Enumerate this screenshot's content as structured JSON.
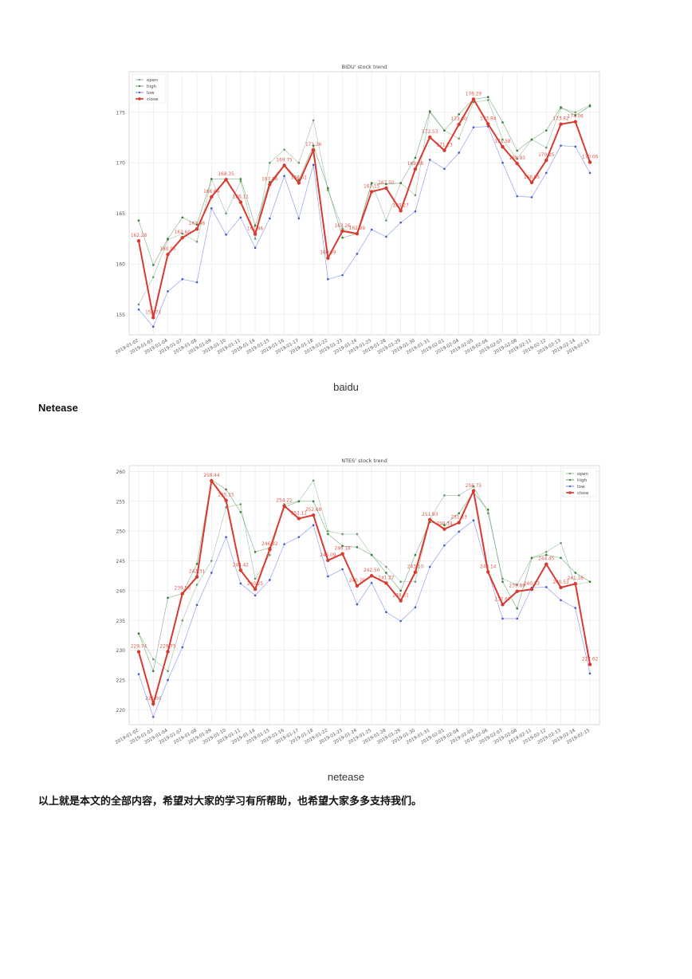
{
  "captions": {
    "baidu": "baidu",
    "netease": "netease"
  },
  "section_heading": "Netease",
  "closing_text": "以上就是本文的全部内容，希望对大家的学习有所帮助，也希望大家多多支持我们。",
  "colors": {
    "open": "#6a9a6a",
    "high": "#2e7d32",
    "low": "#3d56d9",
    "close": "#d93a2f",
    "grid": "#e6e6e6"
  },
  "chart_data": [
    {
      "type": "line",
      "title": "BIDU' stock trend",
      "legend_position": "top-left",
      "grid": true,
      "ylim": [
        153,
        179
      ],
      "yticks": [
        155,
        160,
        165,
        170,
        175
      ],
      "categories": [
        "2019-01-02",
        "2019-01-03",
        "2019-01-04",
        "2019-01-07",
        "2019-01-08",
        "2019-01-09",
        "2019-01-10",
        "2019-01-11",
        "2019-01-14",
        "2019-01-15",
        "2019-01-16",
        "2019-01-17",
        "2019-01-18",
        "2019-01-22",
        "2019-01-23",
        "2019-01-24",
        "2019-01-25",
        "2019-01-28",
        "2019-01-29",
        "2019-01-30",
        "2019-01-31",
        "2019-02-01",
        "2019-02-04",
        "2019-02-05",
        "2019-02-06",
        "2019-02-07",
        "2019-02-08",
        "2019-02-11",
        "2019-02-12",
        "2019-02-13",
        "2019-02-14",
        "2019-02-15"
      ],
      "series": [
        {
          "name": "open",
          "values": [
            156.0,
            158.7,
            162.4,
            163.0,
            162.2,
            168.4,
            165.0,
            168.2,
            162.5,
            170.0,
            171.3,
            170.0,
            174.2,
            167.3,
            163.5,
            163.0,
            168.0,
            164.3,
            168.0,
            166.8,
            175.0,
            173.2,
            172.4,
            176.0,
            176.2,
            172.3,
            170.4,
            172.3,
            171.5,
            175.4,
            175.0,
            175.7
          ]
        },
        {
          "name": "high",
          "values": [
            164.3,
            159.9,
            162.5,
            164.6,
            163.9,
            168.4,
            168.4,
            168.4,
            163.8,
            168.1,
            169.8,
            168.3,
            171.7,
            167.5,
            162.6,
            163.0,
            168.0,
            167.9,
            168.0,
            170.5,
            175.1,
            173.2,
            174.8,
            176.3,
            176.5,
            174.0,
            171.2,
            172.3,
            173.2,
            175.5,
            174.7,
            175.6
          ]
        },
        {
          "name": "low",
          "values": [
            155.5,
            153.8,
            157.3,
            158.5,
            158.2,
            165.5,
            162.9,
            164.6,
            161.6,
            164.5,
            168.7,
            164.5,
            169.8,
            158.5,
            158.9,
            161.0,
            163.4,
            162.7,
            164.1,
            165.2,
            170.3,
            169.4,
            171.0,
            173.5,
            173.6,
            170.0,
            166.7,
            166.6,
            169.0,
            171.7,
            171.6,
            169.0
          ]
        },
        {
          "name": "close",
          "values": [
            162.28,
            154.71,
            160.95,
            162.6,
            163.46,
            166.64,
            168.35,
            166.11,
            162.96,
            167.86,
            169.75,
            168.01,
            171.26,
            160.59,
            163.26,
            162.99,
            167.15,
            167.5,
            165.27,
            169.38,
            172.53,
            171.23,
            173.8,
            176.29,
            173.84,
            171.58,
            169.93,
            168.05,
            170.25,
            173.82,
            174.06,
            170.06
          ]
        }
      ],
      "close_labels": [
        "162.28",
        "154.71",
        "160.95",
        "162.60",
        "163.46",
        "166.64",
        "168.35",
        "166.11",
        "162.96",
        "167.86",
        "169.75",
        "168.01",
        "171.26",
        "160.59",
        "163.26",
        "162.99",
        "167.15",
        "167.50",
        "165.27",
        "169.38",
        "172.53",
        "171.23",
        "173.80",
        "176.29",
        "173.84",
        "171.58",
        "169.93",
        "168.05",
        "170.25",
        "173.82",
        "174.06",
        "170.06"
      ]
    },
    {
      "type": "line",
      "title": "NTES' stock trend",
      "legend_position": "top-right",
      "grid": true,
      "ylim": [
        217.5,
        261
      ],
      "yticks": [
        220,
        225,
        230,
        235,
        240,
        245,
        250,
        255,
        260
      ],
      "categories": [
        "2019-01-02",
        "2019-01-03",
        "2019-01-04",
        "2019-01-07",
        "2019-01-08",
        "2019-01-09",
        "2019-01-10",
        "2019-01-11",
        "2019-01-14",
        "2019-01-15",
        "2019-01-16",
        "2019-01-17",
        "2019-01-18",
        "2019-01-22",
        "2019-01-23",
        "2019-01-24",
        "2019-01-25",
        "2019-01-28",
        "2019-01-29",
        "2019-01-30",
        "2019-01-31",
        "2019-02-01",
        "2019-02-04",
        "2019-02-05",
        "2019-02-06",
        "2019-02-07",
        "2019-02-08",
        "2019-02-11",
        "2019-02-12",
        "2019-02-13",
        "2019-02-14",
        "2019-02-15"
      ],
      "series": [
        {
          "name": "open",
          "values": [
            232.8,
            228.5,
            226.5,
            235.0,
            241.0,
            245.0,
            254.0,
            254.5,
            242.0,
            246.0,
            254.5,
            255.0,
            258.5,
            250.0,
            249.5,
            249.5,
            246.0,
            244.0,
            241.5,
            241.5,
            252.0,
            256.0,
            256.0,
            257.5,
            253.0,
            242.0,
            241.0,
            245.5,
            246.5,
            248.0,
            241.0,
            241.5
          ]
        },
        {
          "name": "high",
          "values": [
            232.8,
            226.5,
            238.8,
            239.5,
            244.5,
            258.6,
            257.0,
            253.2,
            246.5,
            247.2,
            254.0,
            255.0,
            255.0,
            249.5,
            247.5,
            247.3,
            246.0,
            243.0,
            240.0,
            246.0,
            251.5,
            251.0,
            253.0,
            256.5,
            253.6,
            241.5,
            237.0,
            245.5,
            246.0,
            245.5,
            243.0,
            241.5
          ]
        },
        {
          "name": "low",
          "values": [
            226.0,
            218.8,
            225.0,
            230.5,
            237.6,
            243.0,
            249.0,
            241.2,
            239.2,
            241.8,
            247.8,
            249.0,
            251.0,
            242.4,
            243.6,
            237.7,
            241.3,
            236.4,
            234.9,
            237.2,
            244.0,
            247.6,
            249.9,
            251.8,
            243.2,
            235.3,
            235.3,
            240.5,
            240.6,
            238.4,
            237.1,
            226.1
          ]
        },
        {
          "name": "close",
          "values": [
            229.74,
            221.0,
            229.75,
            239.5,
            242.31,
            258.44,
            255.15,
            243.42,
            240.25,
            246.92,
            254.22,
            252.11,
            252.68,
            245.09,
            246.18,
            240.79,
            242.5,
            241.27,
            238.31,
            243.1,
            251.93,
            250.34,
            251.43,
            256.75,
            243.14,
            237.67,
            239.89,
            240.23,
            244.45,
            240.53,
            241.16,
            227.62
          ]
        }
      ],
      "close_labels": [
        "229.74",
        "221.00",
        "229.75",
        "239.50",
        "242.31",
        "258.44",
        "255.15",
        "243.42",
        "240.25",
        "246.92",
        "254.22",
        "252.11",
        "252.68",
        "245.09",
        "246.18",
        "240.79",
        "242.50",
        "241.27",
        "238.31",
        "243.10",
        "251.93",
        "250.34",
        "251.43",
        "256.75",
        "243.14",
        "237.67",
        "239.89",
        "240.23",
        "244.45",
        "240.53",
        "241.16",
        "227.62"
      ]
    }
  ]
}
